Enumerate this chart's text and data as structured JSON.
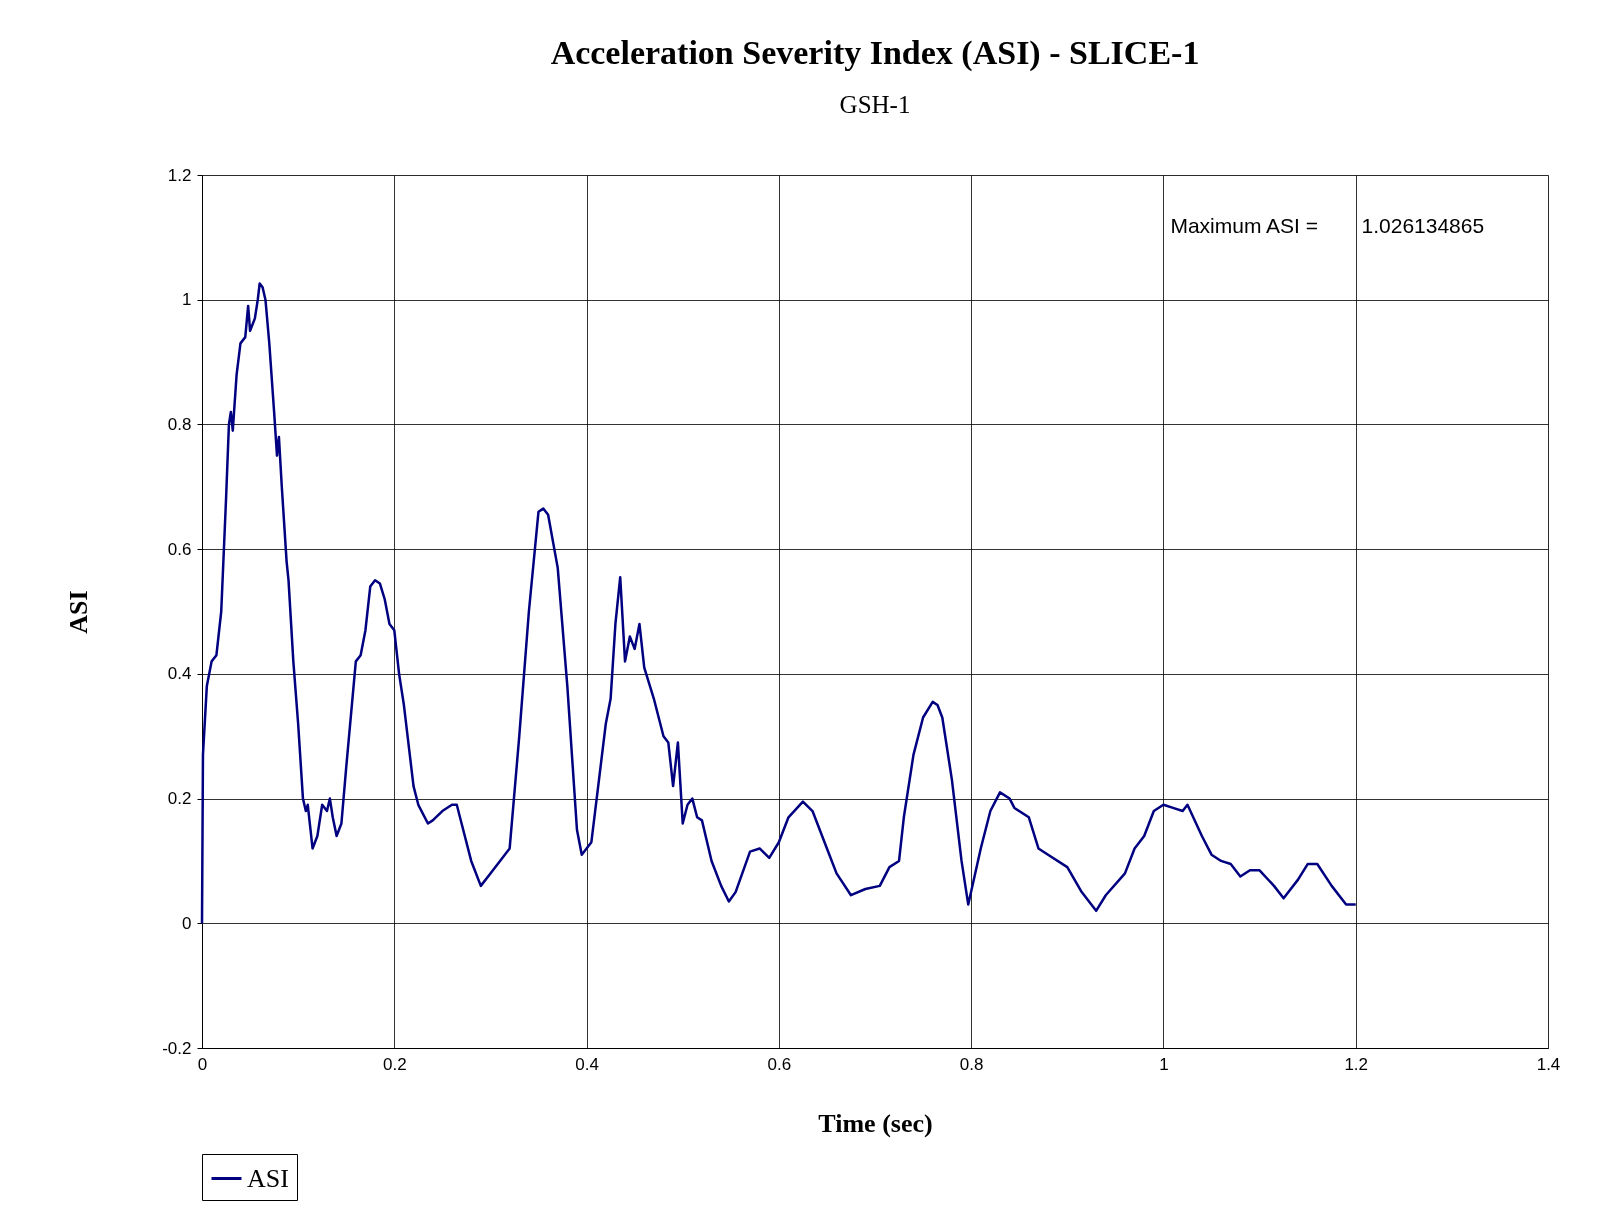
{
  "chart_data": {
    "type": "line",
    "title": "Acceleration Severity Index (ASI) - SLICE-1",
    "subtitle": "GSH-1",
    "xlabel": "Time (sec)",
    "ylabel": "ASI",
    "xlim": [
      0,
      1.4
    ],
    "xticks": [
      0,
      0.2,
      0.4,
      0.6,
      0.8,
      1,
      1.2,
      1.4
    ],
    "ylim": [
      -0.2,
      1.2
    ],
    "yticks": [
      -0.2,
      0,
      0.2,
      0.4,
      0.6,
      0.8,
      1,
      1.2
    ],
    "grid": true,
    "legend": "bottom",
    "marker": "none",
    "line_style": "solid",
    "annotations": [
      "Maximum ASI =",
      "1.026134865"
    ],
    "series": [
      {
        "name": "ASI",
        "color": "#000080",
        "x": [
          0,
          0.001,
          0.005,
          0.01,
          0.015,
          0.02,
          0.025,
          0.028,
          0.03,
          0.032,
          0.036,
          0.04,
          0.045,
          0.048,
          0.05,
          0.055,
          0.058,
          0.06,
          0.063,
          0.066,
          0.07,
          0.075,
          0.078,
          0.08,
          0.083,
          0.088,
          0.09,
          0.095,
          0.1,
          0.105,
          0.108,
          0.11,
          0.115,
          0.12,
          0.125,
          0.13,
          0.133,
          0.136,
          0.14,
          0.145,
          0.15,
          0.16,
          0.165,
          0.17,
          0.175,
          0.18,
          0.185,
          0.19,
          0.195,
          0.2,
          0.205,
          0.21,
          0.22,
          0.225,
          0.235,
          0.24,
          0.25,
          0.26,
          0.265,
          0.27,
          0.28,
          0.29,
          0.3,
          0.31,
          0.32,
          0.33,
          0.34,
          0.35,
          0.355,
          0.36,
          0.37,
          0.38,
          0.39,
          0.395,
          0.405,
          0.42,
          0.425,
          0.43,
          0.435,
          0.44,
          0.445,
          0.45,
          0.455,
          0.46,
          0.47,
          0.48,
          0.485,
          0.49,
          0.495,
          0.5,
          0.505,
          0.51,
          0.515,
          0.52,
          0.53,
          0.54,
          0.548,
          0.555,
          0.57,
          0.58,
          0.59,
          0.6,
          0.61,
          0.625,
          0.635,
          0.65,
          0.66,
          0.675,
          0.69,
          0.705,
          0.715,
          0.725,
          0.73,
          0.74,
          0.75,
          0.76,
          0.765,
          0.77,
          0.78,
          0.79,
          0.797,
          0.81,
          0.82,
          0.83,
          0.84,
          0.845,
          0.86,
          0.87,
          0.88,
          0.9,
          0.915,
          0.93,
          0.94,
          0.96,
          0.97,
          0.98,
          0.99,
          1.0,
          1.01,
          1.02,
          1.025,
          1.04,
          1.05,
          1.06,
          1.07,
          1.08,
          1.09,
          1.1,
          1.115,
          1.125,
          1.14,
          1.15,
          1.16,
          1.175,
          1.19,
          1.2
        ],
        "values": [
          0,
          0.27,
          0.38,
          0.42,
          0.43,
          0.5,
          0.68,
          0.8,
          0.82,
          0.79,
          0.88,
          0.93,
          0.94,
          0.99,
          0.95,
          0.97,
          1.0,
          1.026,
          1.02,
          1.0,
          0.93,
          0.82,
          0.75,
          0.78,
          0.7,
          0.58,
          0.55,
          0.42,
          0.32,
          0.2,
          0.18,
          0.19,
          0.12,
          0.14,
          0.19,
          0.18,
          0.2,
          0.17,
          0.14,
          0.16,
          0.25,
          0.42,
          0.43,
          0.47,
          0.54,
          0.55,
          0.545,
          0.52,
          0.48,
          0.47,
          0.4,
          0.35,
          0.22,
          0.19,
          0.16,
          0.165,
          0.18,
          0.19,
          0.19,
          0.16,
          0.1,
          0.06,
          0.08,
          0.1,
          0.12,
          0.3,
          0.5,
          0.66,
          0.665,
          0.655,
          0.57,
          0.38,
          0.15,
          0.11,
          0.13,
          0.32,
          0.36,
          0.48,
          0.555,
          0.42,
          0.46,
          0.44,
          0.48,
          0.41,
          0.36,
          0.3,
          0.29,
          0.22,
          0.29,
          0.16,
          0.19,
          0.2,
          0.17,
          0.165,
          0.1,
          0.06,
          0.035,
          0.05,
          0.115,
          0.12,
          0.105,
          0.13,
          0.17,
          0.195,
          0.18,
          0.12,
          0.08,
          0.045,
          0.055,
          0.06,
          0.09,
          0.1,
          0.17,
          0.27,
          0.33,
          0.355,
          0.35,
          0.33,
          0.23,
          0.1,
          0.03,
          0.12,
          0.18,
          0.21,
          0.2,
          0.185,
          0.17,
          0.12,
          0.11,
          0.09,
          0.05,
          0.02,
          0.045,
          0.08,
          0.12,
          0.14,
          0.18,
          0.19,
          0.185,
          0.18,
          0.19,
          0.14,
          0.11,
          0.1,
          0.095,
          0.075,
          0.085,
          0.085,
          0.06,
          0.04,
          0.07,
          0.095,
          0.095,
          0.06,
          0.03,
          0.03
        ]
      }
    ]
  }
}
